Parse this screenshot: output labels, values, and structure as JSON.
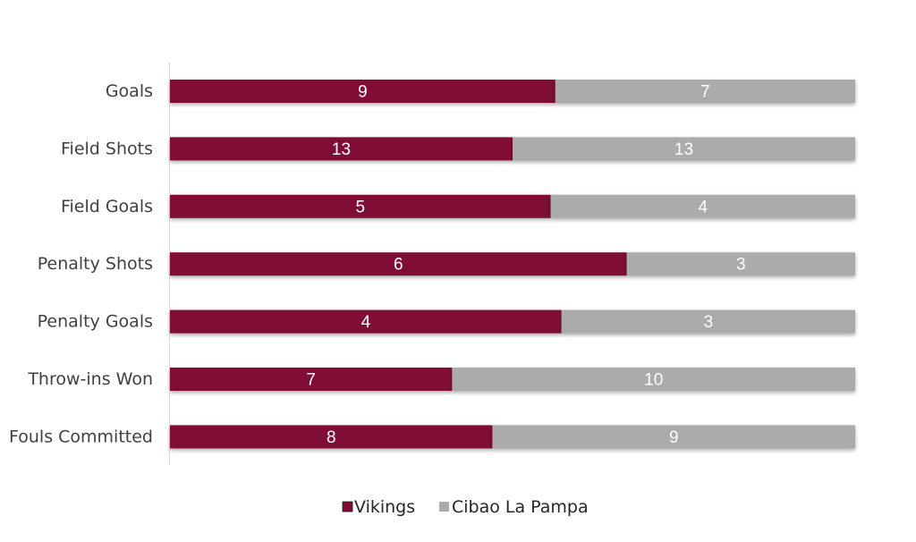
{
  "chart_data": {
    "type": "bar",
    "orientation": "horizontal",
    "stacking": "percent",
    "categories": [
      "Goals",
      "Field Shots",
      "Field Goals",
      "Penalty Shots",
      "Penalty Goals",
      "Throw-ins Won",
      "Fouls Committed"
    ],
    "series": [
      {
        "name": "Vikings",
        "values": [
          9,
          13,
          5,
          6,
          4,
          7,
          8
        ],
        "color": "#800a35"
      },
      {
        "name": "Cibao La Pampa",
        "values": [
          7,
          13,
          4,
          3,
          3,
          10,
          9
        ],
        "color": "#ababab"
      }
    ],
    "title": "",
    "xlabel": "",
    "ylabel": "",
    "grid": false,
    "legend": "bottom-center",
    "data_labels": true
  }
}
